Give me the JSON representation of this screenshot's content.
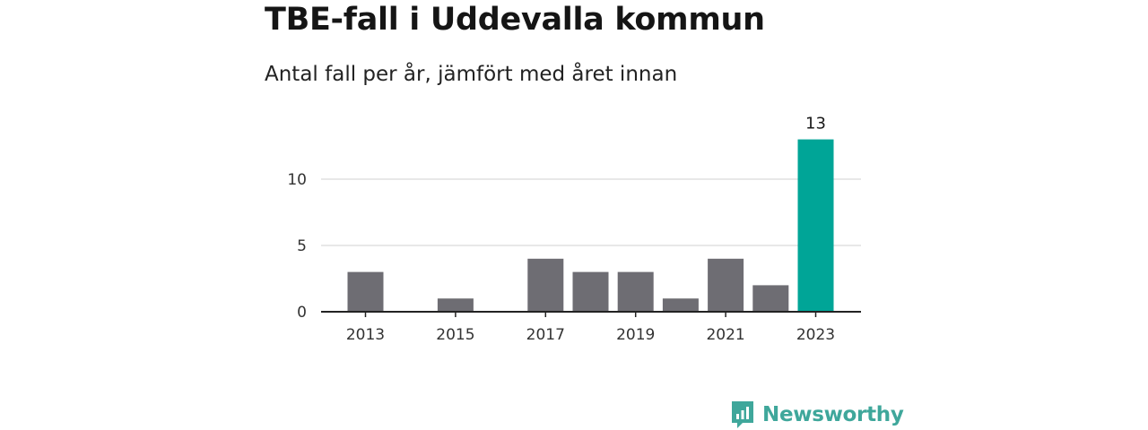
{
  "header": {
    "title": "TBE-fall i Uddevalla kommun",
    "subtitle": "Antal fall per år, jämfört med året innan"
  },
  "brand": {
    "name": "Newsworthy",
    "icon": "newsworthy-logo-icon",
    "color": "#3fa79b"
  },
  "colors": {
    "bar_default": "#6e6d73",
    "bar_highlight": "#00a597",
    "grid": "#d9d9d9",
    "axis": "#222222"
  },
  "chart_data": {
    "type": "bar",
    "title": "TBE-fall i Uddevalla kommun",
    "subtitle": "Antal fall per år, jämfört med året innan",
    "xlabel": "",
    "ylabel": "",
    "categories": [
      "2013",
      "2014",
      "2015",
      "2016",
      "2017",
      "2018",
      "2019",
      "2020",
      "2021",
      "2022",
      "2023"
    ],
    "values": [
      3,
      0,
      1,
      0,
      4,
      3,
      3,
      1,
      4,
      2,
      13
    ],
    "x_tick_labels": [
      "2013",
      "2015",
      "2017",
      "2019",
      "2021",
      "2023"
    ],
    "y_ticks": [
      0,
      5,
      10
    ],
    "ylim": [
      0,
      13
    ],
    "highlight_category": "2023",
    "highlight_label": "13",
    "grid": true,
    "legend": "none"
  }
}
